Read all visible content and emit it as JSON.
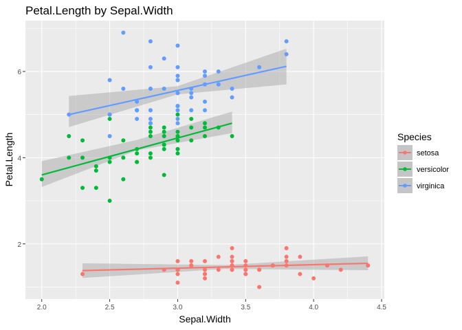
{
  "chart_data": {
    "type": "scatter",
    "title": "Petal.Length by Sepal.Width",
    "xlabel": "Sepal.Width",
    "ylabel": "Petal.Length",
    "xlim": [
      1.88,
      4.52
    ],
    "ylim": [
      0.72,
      7.18
    ],
    "x_ticks": [
      2.0,
      2.5,
      3.0,
      3.5,
      4.0,
      4.5
    ],
    "x_tick_labels": [
      "2.0",
      "2.5",
      "3.0",
      "3.5",
      "4.0",
      "4.5"
    ],
    "y_ticks": [
      2,
      4,
      6
    ],
    "y_tick_labels": [
      "2",
      "4",
      "6"
    ],
    "grid": true,
    "legend": {
      "title": "Species",
      "placement": "right"
    },
    "series": [
      {
        "name": "setosa",
        "color": "#F8766D",
        "points": [
          [
            3.5,
            1.4
          ],
          [
            3.0,
            1.4
          ],
          [
            3.2,
            1.3
          ],
          [
            3.1,
            1.5
          ],
          [
            3.6,
            1.4
          ],
          [
            3.9,
            1.7
          ],
          [
            3.4,
            1.4
          ],
          [
            3.4,
            1.5
          ],
          [
            2.9,
            1.4
          ],
          [
            3.1,
            1.5
          ],
          [
            3.7,
            1.5
          ],
          [
            3.4,
            1.6
          ],
          [
            3.0,
            1.4
          ],
          [
            3.0,
            1.1
          ],
          [
            4.0,
            1.2
          ],
          [
            4.4,
            1.5
          ],
          [
            3.9,
            1.3
          ],
          [
            3.5,
            1.4
          ],
          [
            3.8,
            1.7
          ],
          [
            3.8,
            1.5
          ],
          [
            3.4,
            1.7
          ],
          [
            3.7,
            1.5
          ],
          [
            3.6,
            1.0
          ],
          [
            3.3,
            1.7
          ],
          [
            3.4,
            1.9
          ],
          [
            3.0,
            1.6
          ],
          [
            3.4,
            1.6
          ],
          [
            3.5,
            1.5
          ],
          [
            3.4,
            1.4
          ],
          [
            3.2,
            1.6
          ],
          [
            3.1,
            1.6
          ],
          [
            3.4,
            1.5
          ],
          [
            4.1,
            1.5
          ],
          [
            4.2,
            1.4
          ],
          [
            3.1,
            1.5
          ],
          [
            3.2,
            1.2
          ],
          [
            3.5,
            1.3
          ],
          [
            3.6,
            1.4
          ],
          [
            3.0,
            1.3
          ],
          [
            3.4,
            1.5
          ],
          [
            3.5,
            1.3
          ],
          [
            2.3,
            1.3
          ],
          [
            3.2,
            1.3
          ],
          [
            3.5,
            1.6
          ],
          [
            3.8,
            1.9
          ],
          [
            3.0,
            1.4
          ],
          [
            3.8,
            1.6
          ],
          [
            3.2,
            1.4
          ],
          [
            3.7,
            1.5
          ],
          [
            3.3,
            1.4
          ]
        ],
        "fit": {
          "x": [
            2.3,
            4.4
          ],
          "y": [
            1.38,
            1.55
          ]
        },
        "band": {
          "x": [
            2.3,
            3.35,
            4.4
          ],
          "lower": [
            1.21,
            1.42,
            1.39
          ],
          "upper": [
            1.55,
            1.51,
            1.71
          ]
        }
      },
      {
        "name": "versicolor",
        "color": "#00BA38",
        "points": [
          [
            3.2,
            4.7
          ],
          [
            3.2,
            4.5
          ],
          [
            3.1,
            4.9
          ],
          [
            2.3,
            4.0
          ],
          [
            2.8,
            4.6
          ],
          [
            2.8,
            4.5
          ],
          [
            3.3,
            4.7
          ],
          [
            2.4,
            3.3
          ],
          [
            2.9,
            4.6
          ],
          [
            2.7,
            3.9
          ],
          [
            2.0,
            3.5
          ],
          [
            3.0,
            4.2
          ],
          [
            2.2,
            4.0
          ],
          [
            2.9,
            4.7
          ],
          [
            2.9,
            3.6
          ],
          [
            3.1,
            4.4
          ],
          [
            3.0,
            4.5
          ],
          [
            2.7,
            4.1
          ],
          [
            2.2,
            4.5
          ],
          [
            2.5,
            3.9
          ],
          [
            3.2,
            4.8
          ],
          [
            2.8,
            4.0
          ],
          [
            2.5,
            4.9
          ],
          [
            2.8,
            4.7
          ],
          [
            2.9,
            4.3
          ],
          [
            3.0,
            4.4
          ],
          [
            2.8,
            4.8
          ],
          [
            3.0,
            5.0
          ],
          [
            2.9,
            4.5
          ],
          [
            2.6,
            3.5
          ],
          [
            2.4,
            3.8
          ],
          [
            2.4,
            3.7
          ],
          [
            2.7,
            3.9
          ],
          [
            2.7,
            5.1
          ],
          [
            3.0,
            4.5
          ],
          [
            3.4,
            4.5
          ],
          [
            3.1,
            4.7
          ],
          [
            2.3,
            4.4
          ],
          [
            3.0,
            4.1
          ],
          [
            2.5,
            4.0
          ],
          [
            2.6,
            4.4
          ],
          [
            3.0,
            4.6
          ],
          [
            2.6,
            4.0
          ],
          [
            2.3,
            3.3
          ],
          [
            2.7,
            4.2
          ],
          [
            3.0,
            4.2
          ],
          [
            2.9,
            4.2
          ],
          [
            2.9,
            4.3
          ],
          [
            2.5,
            3.0
          ],
          [
            2.8,
            4.1
          ]
        ],
        "fit": {
          "x": [
            2.0,
            3.4
          ],
          "y": [
            3.6,
            4.8
          ]
        },
        "band": {
          "x": [
            2.0,
            2.7,
            3.4
          ],
          "lower": [
            3.32,
            4.17,
            4.57
          ],
          "upper": [
            3.92,
            4.41,
            5.07
          ]
        }
      },
      {
        "name": "virginica",
        "color": "#619CFF",
        "points": [
          [
            3.3,
            6.0
          ],
          [
            2.7,
            5.1
          ],
          [
            3.0,
            5.9
          ],
          [
            2.9,
            5.6
          ],
          [
            3.0,
            5.8
          ],
          [
            3.0,
            6.6
          ],
          [
            2.5,
            4.5
          ],
          [
            2.9,
            6.3
          ],
          [
            2.5,
            5.8
          ],
          [
            3.6,
            6.1
          ],
          [
            3.2,
            5.1
          ],
          [
            2.7,
            5.3
          ],
          [
            3.0,
            5.5
          ],
          [
            2.5,
            5.0
          ],
          [
            2.8,
            5.1
          ],
          [
            3.2,
            5.3
          ],
          [
            3.0,
            5.5
          ],
          [
            3.8,
            6.7
          ],
          [
            2.6,
            6.9
          ],
          [
            2.2,
            5.0
          ],
          [
            3.2,
            5.7
          ],
          [
            2.8,
            4.9
          ],
          [
            2.8,
            6.7
          ],
          [
            2.7,
            4.9
          ],
          [
            3.3,
            5.7
          ],
          [
            3.2,
            6.0
          ],
          [
            2.8,
            4.8
          ],
          [
            3.0,
            4.9
          ],
          [
            2.8,
            5.6
          ],
          [
            3.0,
            5.8
          ],
          [
            2.8,
            6.1
          ],
          [
            3.8,
            6.4
          ],
          [
            2.8,
            5.6
          ],
          [
            2.8,
            5.1
          ],
          [
            2.6,
            5.6
          ],
          [
            3.0,
            6.1
          ],
          [
            3.4,
            5.6
          ],
          [
            3.1,
            5.5
          ],
          [
            3.0,
            4.8
          ],
          [
            3.1,
            5.4
          ],
          [
            3.1,
            5.6
          ],
          [
            3.1,
            5.1
          ],
          [
            2.7,
            5.1
          ],
          [
            3.2,
            5.9
          ],
          [
            3.3,
            5.7
          ],
          [
            3.0,
            5.2
          ],
          [
            2.5,
            5.0
          ],
          [
            3.0,
            5.2
          ],
          [
            3.4,
            5.4
          ],
          [
            3.0,
            5.1
          ]
        ],
        "fit": {
          "x": [
            2.2,
            3.8
          ],
          "y": [
            5.0,
            6.12
          ]
        },
        "band": {
          "x": [
            2.2,
            3.0,
            3.8
          ],
          "lower": [
            4.71,
            5.47,
            5.7
          ],
          "upper": [
            5.43,
            5.66,
            6.53
          ]
        }
      }
    ]
  }
}
